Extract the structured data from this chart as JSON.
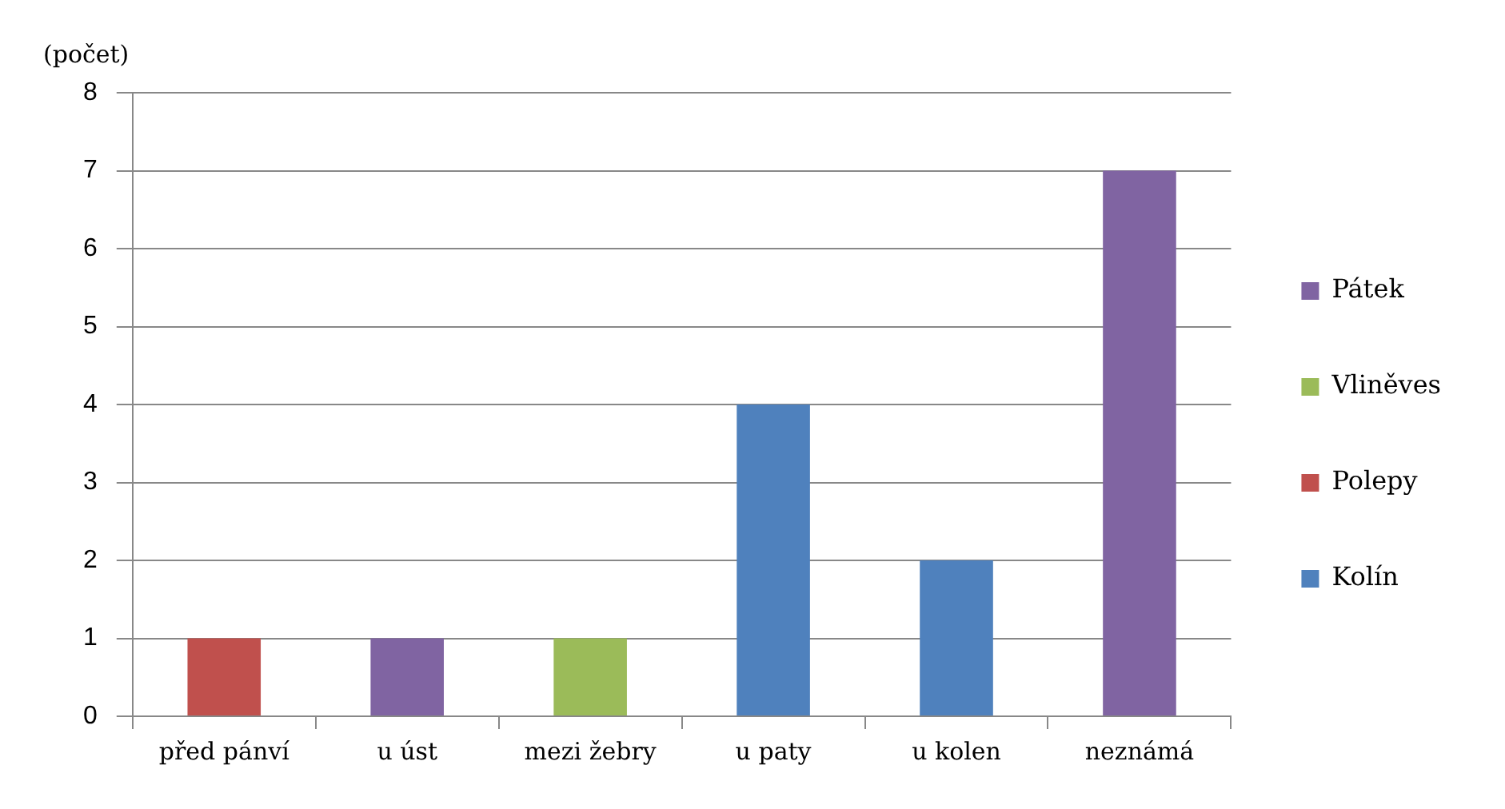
{
  "chart_data": {
    "type": "bar",
    "ylabel": "(počet)",
    "categories": [
      "před pánví",
      "u úst",
      "mezi žebry",
      "u paty",
      "u kolen",
      "neznámá"
    ],
    "stacked": true,
    "series": [
      {
        "name": "Kolín",
        "color": "#4f81bd",
        "values": [
          null,
          null,
          null,
          4,
          2,
          null
        ]
      },
      {
        "name": "Polepy",
        "color": "#c0504d",
        "values": [
          1,
          null,
          null,
          null,
          null,
          null
        ]
      },
      {
        "name": "Vliněves",
        "color": "#9bbb59",
        "values": [
          null,
          null,
          1,
          null,
          null,
          null
        ]
      },
      {
        "name": "Pátek",
        "color": "#8064a2",
        "values": [
          null,
          1,
          null,
          null,
          null,
          7
        ]
      }
    ],
    "ylim": [
      0,
      8
    ],
    "yticks": [
      0,
      1,
      2,
      3,
      4,
      5,
      6,
      7,
      8
    ],
    "grid": "y",
    "legend": "right"
  }
}
